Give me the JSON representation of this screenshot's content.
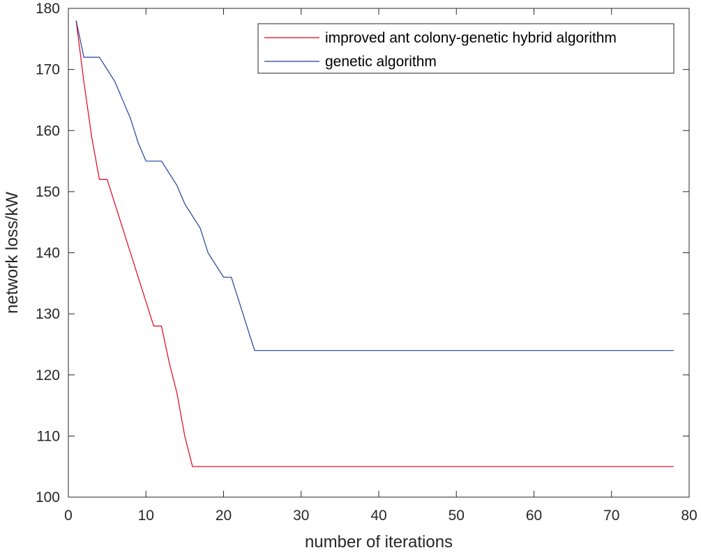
{
  "chart_data": {
    "type": "line",
    "title": "",
    "xlabel": "number of iterations",
    "ylabel": "network loss/kW",
    "xlim": [
      0,
      80
    ],
    "ylim": [
      100,
      180
    ],
    "xticks": [
      0,
      10,
      20,
      30,
      40,
      50,
      60,
      70,
      80
    ],
    "yticks": [
      100,
      110,
      120,
      130,
      140,
      150,
      160,
      170,
      180
    ],
    "grid": false,
    "legend_position": "top-right",
    "series": [
      {
        "name": "improved ant colony-genetic hybrid algorithm",
        "color": "#e3001b",
        "x": [
          1,
          2,
          3,
          4,
          5,
          6,
          7,
          8,
          9,
          10,
          11,
          12,
          13,
          14,
          15,
          16,
          78
        ],
        "y": [
          178,
          168,
          159,
          152,
          152,
          148,
          144,
          140,
          136,
          132,
          128,
          128,
          122,
          117,
          110,
          105,
          105
        ]
      },
      {
        "name": "genetic algorithm",
        "color": "#1f3e9c",
        "x": [
          1,
          2,
          3,
          4,
          5,
          6,
          7,
          8,
          9,
          10,
          11,
          12,
          13,
          14,
          15,
          16,
          17,
          18,
          19,
          20,
          21,
          22,
          23,
          24,
          78
        ],
        "y": [
          178,
          172,
          172,
          172,
          170,
          168,
          165,
          162,
          158,
          155,
          155,
          155,
          153,
          151,
          148,
          146,
          144,
          140,
          138,
          136,
          136,
          132,
          128,
          124,
          124
        ]
      }
    ]
  }
}
